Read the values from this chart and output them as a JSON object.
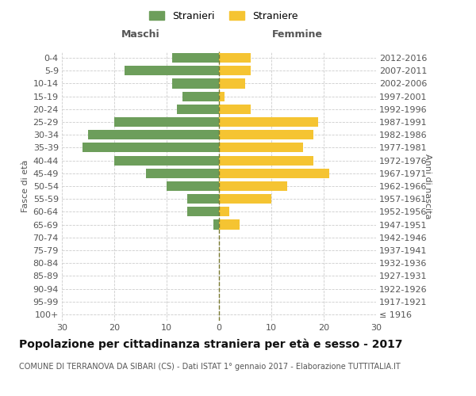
{
  "age_groups": [
    "100+",
    "95-99",
    "90-94",
    "85-89",
    "80-84",
    "75-79",
    "70-74",
    "65-69",
    "60-64",
    "55-59",
    "50-54",
    "45-49",
    "40-44",
    "35-39",
    "30-34",
    "25-29",
    "20-24",
    "15-19",
    "10-14",
    "5-9",
    "0-4"
  ],
  "birth_years": [
    "≤ 1916",
    "1917-1921",
    "1922-1926",
    "1927-1931",
    "1932-1936",
    "1937-1941",
    "1942-1946",
    "1947-1951",
    "1952-1956",
    "1957-1961",
    "1962-1966",
    "1967-1971",
    "1972-1976",
    "1977-1981",
    "1982-1986",
    "1987-1991",
    "1992-1996",
    "1997-2001",
    "2002-2006",
    "2007-2011",
    "2012-2016"
  ],
  "males": [
    0,
    0,
    0,
    0,
    0,
    0,
    0,
    1,
    6,
    6,
    10,
    14,
    20,
    26,
    25,
    20,
    8,
    7,
    9,
    18,
    9
  ],
  "females": [
    0,
    0,
    0,
    0,
    0,
    0,
    0,
    4,
    2,
    10,
    13,
    21,
    18,
    16,
    18,
    19,
    6,
    1,
    5,
    6,
    6
  ],
  "male_color": "#6d9e5b",
  "female_color": "#f5c432",
  "grid_color": "#cccccc",
  "dashed_line_color": "#7a7a30",
  "title": "Popolazione per cittadinanza straniera per età e sesso - 2017",
  "subtitle": "COMUNE DI TERRANOVA DA SIBARI (CS) - Dati ISTAT 1° gennaio 2017 - Elaborazione TUTTITALIA.IT",
  "xlabel_left": "Maschi",
  "xlabel_right": "Femmine",
  "ylabel_left": "Fasce di età",
  "ylabel_right": "Anni di nascita",
  "legend_males": "Stranieri",
  "legend_females": "Straniere",
  "xlim": 30,
  "bar_height": 0.75,
  "background_color": "#ffffff",
  "title_fontsize": 10,
  "subtitle_fontsize": 7,
  "tick_fontsize": 8,
  "header_fontsize": 9,
  "ylabel_fontsize": 8
}
